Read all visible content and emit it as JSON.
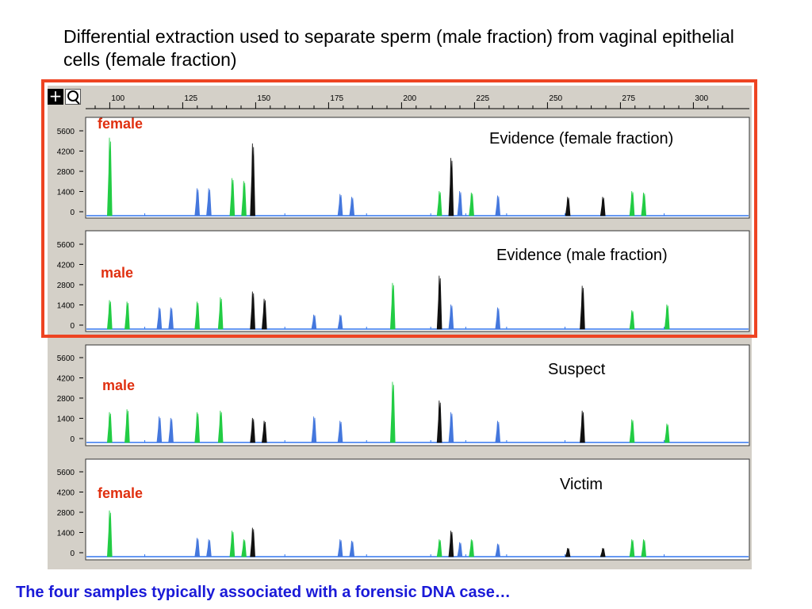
{
  "slide": {
    "title": "Differential extraction used to separate sperm (male fraction) from vaginal epithelial cells (female fraction)",
    "caption": "The four samples typically associated with a forensic DNA case…"
  },
  "colors": {
    "green": "#22cc44",
    "blue": "#4477dd",
    "black": "#111111",
    "baseline": "#3377ee",
    "highlight": "#ee4422",
    "fraction_label": "#e03010",
    "caption": "#1a1ad8"
  },
  "toolbar": {
    "zoom_in_icon": "plus-icon",
    "zoom_icon": "magnifier-icon"
  },
  "chart_data": {
    "type": "line",
    "x_ticks": [
      100,
      125,
      150,
      175,
      200,
      225,
      250,
      275,
      300
    ],
    "y_ticks": [
      0,
      1400,
      2800,
      4200,
      5600
    ],
    "xlim": [
      90,
      310
    ],
    "ylim": [
      0,
      6000
    ],
    "panels": [
      {
        "name": "Evidence (female fraction)",
        "fraction_label": "female",
        "peaks": [
          {
            "x": 100,
            "y": 5400,
            "c": "green"
          },
          {
            "x": 130,
            "y": 1900,
            "c": "blue"
          },
          {
            "x": 134,
            "y": 1900,
            "c": "blue"
          },
          {
            "x": 142,
            "y": 2600,
            "c": "green"
          },
          {
            "x": 146,
            "y": 2400,
            "c": "green"
          },
          {
            "x": 149,
            "y": 5000,
            "c": "black"
          },
          {
            "x": 179,
            "y": 1500,
            "c": "blue"
          },
          {
            "x": 183,
            "y": 1300,
            "c": "blue"
          },
          {
            "x": 213,
            "y": 1700,
            "c": "green"
          },
          {
            "x": 217,
            "y": 4000,
            "c": "black"
          },
          {
            "x": 220,
            "y": 1700,
            "c": "blue"
          },
          {
            "x": 224,
            "y": 1600,
            "c": "green"
          },
          {
            "x": 233,
            "y": 1400,
            "c": "blue"
          },
          {
            "x": 257,
            "y": 1300,
            "c": "black"
          },
          {
            "x": 269,
            "y": 1300,
            "c": "black"
          },
          {
            "x": 279,
            "y": 1700,
            "c": "green"
          },
          {
            "x": 283,
            "y": 1600,
            "c": "green"
          }
        ]
      },
      {
        "name": "Evidence (male fraction)",
        "fraction_label": "male",
        "peaks": [
          {
            "x": 100,
            "y": 2000,
            "c": "green"
          },
          {
            "x": 106,
            "y": 1900,
            "c": "green"
          },
          {
            "x": 117,
            "y": 1500,
            "c": "blue"
          },
          {
            "x": 121,
            "y": 1500,
            "c": "blue"
          },
          {
            "x": 130,
            "y": 1900,
            "c": "green"
          },
          {
            "x": 138,
            "y": 2200,
            "c": "green"
          },
          {
            "x": 149,
            "y": 2600,
            "c": "black"
          },
          {
            "x": 153,
            "y": 2100,
            "c": "black"
          },
          {
            "x": 170,
            "y": 1000,
            "c": "blue"
          },
          {
            "x": 179,
            "y": 1000,
            "c": "blue"
          },
          {
            "x": 197,
            "y": 3200,
            "c": "green"
          },
          {
            "x": 213,
            "y": 3700,
            "c": "black"
          },
          {
            "x": 217,
            "y": 1700,
            "c": "blue"
          },
          {
            "x": 233,
            "y": 1500,
            "c": "blue"
          },
          {
            "x": 262,
            "y": 3000,
            "c": "black"
          },
          {
            "x": 279,
            "y": 1300,
            "c": "green"
          },
          {
            "x": 291,
            "y": 1700,
            "c": "green"
          }
        ]
      },
      {
        "name": "Suspect",
        "fraction_label": "male",
        "peaks": [
          {
            "x": 100,
            "y": 2100,
            "c": "green"
          },
          {
            "x": 106,
            "y": 2300,
            "c": "green"
          },
          {
            "x": 117,
            "y": 1800,
            "c": "blue"
          },
          {
            "x": 121,
            "y": 1700,
            "c": "blue"
          },
          {
            "x": 130,
            "y": 2100,
            "c": "green"
          },
          {
            "x": 138,
            "y": 2200,
            "c": "green"
          },
          {
            "x": 149,
            "y": 1700,
            "c": "black"
          },
          {
            "x": 153,
            "y": 1500,
            "c": "black"
          },
          {
            "x": 170,
            "y": 1800,
            "c": "blue"
          },
          {
            "x": 179,
            "y": 1500,
            "c": "blue"
          },
          {
            "x": 197,
            "y": 4200,
            "c": "green"
          },
          {
            "x": 213,
            "y": 2900,
            "c": "black"
          },
          {
            "x": 217,
            "y": 2100,
            "c": "blue"
          },
          {
            "x": 233,
            "y": 1500,
            "c": "blue"
          },
          {
            "x": 262,
            "y": 2200,
            "c": "black"
          },
          {
            "x": 279,
            "y": 1600,
            "c": "green"
          },
          {
            "x": 291,
            "y": 1300,
            "c": "green"
          }
        ]
      },
      {
        "name": "Victim",
        "fraction_label": "female",
        "peaks": [
          {
            "x": 100,
            "y": 3200,
            "c": "green"
          },
          {
            "x": 130,
            "y": 1300,
            "c": "blue"
          },
          {
            "x": 134,
            "y": 1200,
            "c": "blue"
          },
          {
            "x": 142,
            "y": 1800,
            "c": "green"
          },
          {
            "x": 146,
            "y": 1200,
            "c": "green"
          },
          {
            "x": 149,
            "y": 2000,
            "c": "black"
          },
          {
            "x": 179,
            "y": 1200,
            "c": "blue"
          },
          {
            "x": 183,
            "y": 1100,
            "c": "blue"
          },
          {
            "x": 213,
            "y": 1200,
            "c": "green"
          },
          {
            "x": 217,
            "y": 1800,
            "c": "black"
          },
          {
            "x": 220,
            "y": 1000,
            "c": "blue"
          },
          {
            "x": 224,
            "y": 1200,
            "c": "green"
          },
          {
            "x": 233,
            "y": 900,
            "c": "blue"
          },
          {
            "x": 257,
            "y": 600,
            "c": "black"
          },
          {
            "x": 269,
            "y": 600,
            "c": "black"
          },
          {
            "x": 279,
            "y": 1200,
            "c": "green"
          },
          {
            "x": 283,
            "y": 1200,
            "c": "green"
          }
        ]
      }
    ]
  }
}
